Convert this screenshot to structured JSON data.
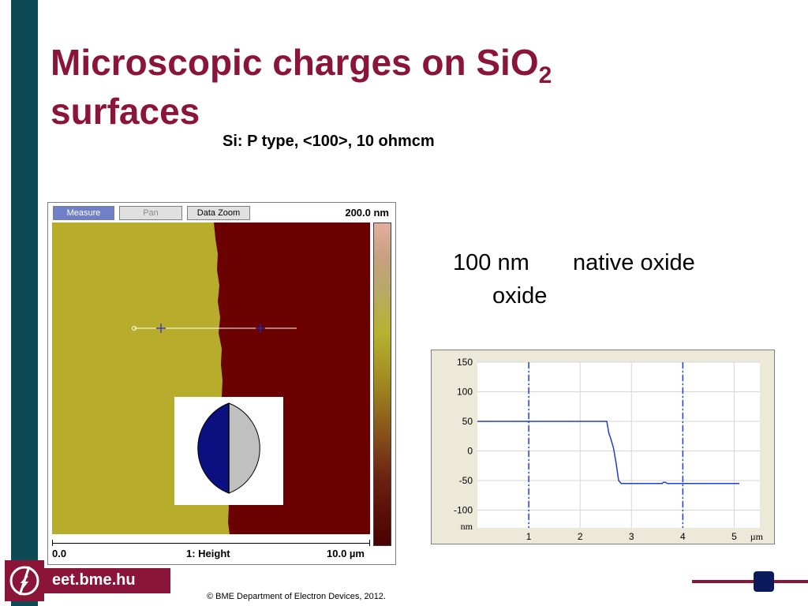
{
  "slide": {
    "title_main": "Microscopic charges on SiO",
    "title_sub": "2",
    "title_line2": "surfaces",
    "subtitle": "Si: P type, <100>, 10 ohmcm"
  },
  "afm": {
    "toolbar": {
      "measure": "Measure",
      "pan": "Pan",
      "data_zoom": "Data Zoom"
    },
    "scale_max": "200.0 nm",
    "axis": {
      "left": "0.0",
      "center": "1: Height",
      "right": "10.0 µm"
    }
  },
  "labels": {
    "thickness": "100 nm",
    "native": "native oxide",
    "oxide": "oxide"
  },
  "chart_data": {
    "type": "line",
    "x": [
      0,
      0.2,
      0.4,
      0.6,
      0.8,
      1.0,
      1.2,
      1.4,
      1.6,
      1.8,
      2.0,
      2.2,
      2.4,
      2.52,
      2.56,
      2.6,
      2.65,
      2.7,
      2.75,
      2.8,
      3.0,
      3.2,
      3.4,
      3.6,
      3.62,
      3.66,
      3.7,
      3.8,
      4.0,
      4.2,
      4.4,
      4.6,
      4.8,
      5.0,
      5.1
    ],
    "y": [
      50,
      50,
      50,
      50,
      50,
      50,
      50,
      50,
      50,
      50,
      50,
      50,
      50,
      50,
      30,
      20,
      5,
      -20,
      -50,
      -55,
      -55,
      -55,
      -55,
      -55,
      -53,
      -53,
      -55,
      -55,
      -55,
      -55,
      -55,
      -55,
      -55,
      -55,
      -55
    ],
    "xlim": [
      0,
      5.5
    ],
    "ylim": [
      -130,
      150
    ],
    "xticks": [
      "1",
      "2",
      "3",
      "4",
      "5"
    ],
    "yticks": [
      "150",
      "100",
      "50",
      "0",
      "-50",
      "-100"
    ],
    "ylabel": "nm",
    "xlabel": "µm",
    "markers_x": [
      1,
      4
    ],
    "grid": true
  },
  "footer": {
    "url": "eet.bme.hu",
    "copyright": "© BME Department of Electron Devices, 2012."
  },
  "colors": {
    "title": "#8b1538",
    "sidebar": "#0e4a55",
    "afm_left": "#b8b02a",
    "afm_right": "#6a0000",
    "trace": "#1f3fd0"
  }
}
